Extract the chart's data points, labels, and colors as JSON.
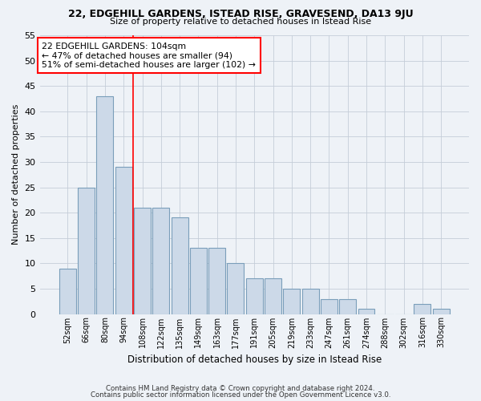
{
  "title1": "22, EDGEHILL GARDENS, ISTEAD RISE, GRAVESEND, DA13 9JU",
  "title2": "Size of property relative to detached houses in Istead Rise",
  "xlabel": "Distribution of detached houses by size in Istead Rise",
  "ylabel": "Number of detached properties",
  "footer1": "Contains HM Land Registry data © Crown copyright and database right 2024.",
  "footer2": "Contains public sector information licensed under the Open Government Licence v3.0.",
  "annotation_line1": "22 EDGEHILL GARDENS: 104sqm",
  "annotation_line2": "← 47% of detached houses are smaller (94)",
  "annotation_line3": "51% of semi-detached houses are larger (102) →",
  "bar_labels": [
    "52sqm",
    "66sqm",
    "80sqm",
    "94sqm",
    "108sqm",
    "122sqm",
    "135sqm",
    "149sqm",
    "163sqm",
    "177sqm",
    "191sqm",
    "205sqm",
    "219sqm",
    "233sqm",
    "247sqm",
    "261sqm",
    "274sqm",
    "288sqm",
    "302sqm",
    "316sqm",
    "330sqm"
  ],
  "bar_values": [
    9,
    25,
    43,
    29,
    21,
    21,
    19,
    13,
    13,
    10,
    7,
    7,
    5,
    5,
    3,
    3,
    1,
    0,
    0,
    2,
    1
  ],
  "bar_color": "#ccd9e8",
  "bar_edge_color": "#7a9eba",
  "vline_x": 3.5,
  "vline_color": "red",
  "ylim": [
    0,
    55
  ],
  "yticks": [
    0,
    5,
    10,
    15,
    20,
    25,
    30,
    35,
    40,
    45,
    50,
    55
  ],
  "annotation_box_color": "white",
  "annotation_box_edge": "red",
  "bg_color": "#eef2f7",
  "grid_color": "#c5cdd8"
}
